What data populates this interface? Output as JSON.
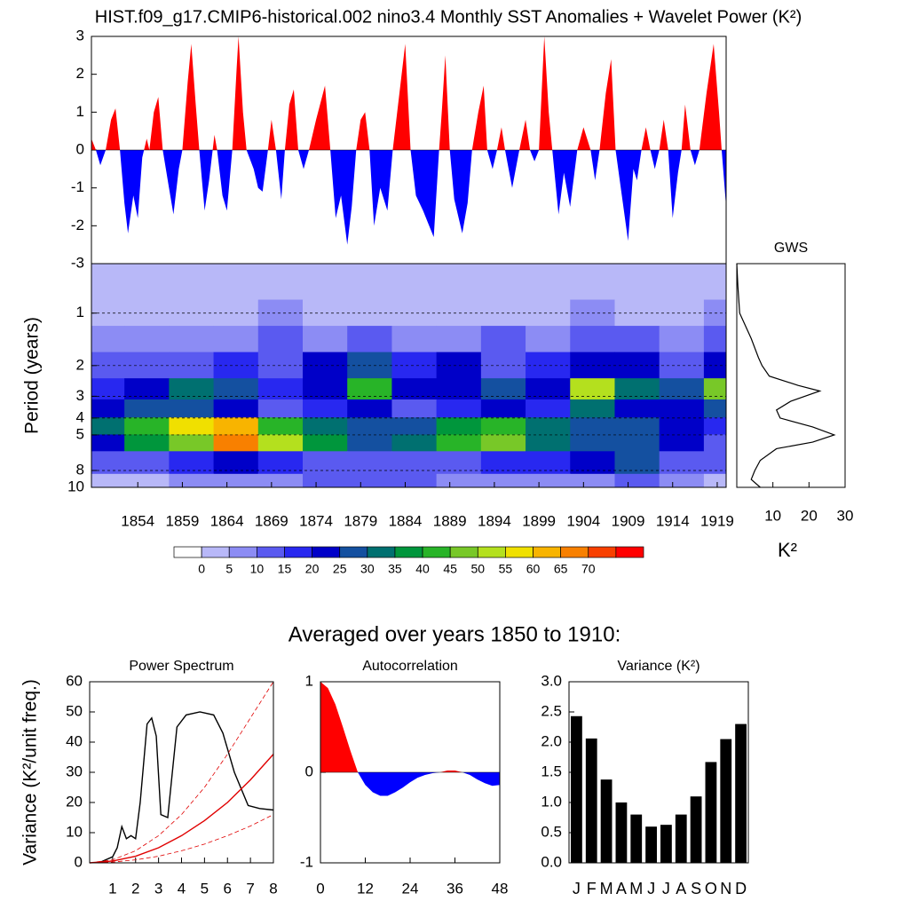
{
  "title": "HIST.f09_g17.CMIP6-historical.002 nino3.4 Monthly SST Anomalies + Wavelet Power (K²)",
  "subtitle": "Averaged over years 1850 to 1910:",
  "chart_data": [
    {
      "type": "area",
      "x": [
        1848.8,
        1849.3,
        1849.8,
        1850.4,
        1851.0,
        1851.5,
        1852.0,
        1852.5,
        1852.9,
        1853.5,
        1854.0,
        1854.5,
        1855.0,
        1855.3,
        1855.8,
        1856.3,
        1856.8,
        1857.5,
        1858.0,
        1858.6,
        1859.0,
        1859.6,
        1860.0,
        1860.5,
        1860.9,
        1861.5,
        1862.0,
        1862.4,
        1862.6,
        1862.9,
        1863.5,
        1864.0,
        1864.6,
        1865.1,
        1865.3,
        1865.8,
        1866.2,
        1867.0,
        1867.5,
        1868.0,
        1868.6,
        1869.0,
        1869.5,
        1870.1,
        1870.5,
        1871.0,
        1871.5,
        1872.0,
        1872.6,
        1873.2,
        1874.0,
        1875.0,
        1875.6,
        1876.2,
        1876.8,
        1877.5,
        1878.0,
        1878.5,
        1879.0,
        1879.5,
        1880.0,
        1880.5,
        1881.2,
        1882.0,
        1882.6,
        1883.4,
        1884.0,
        1884.6,
        1885.2,
        1886.0,
        1887.2,
        1887.8,
        1888.1,
        1888.5,
        1889.0,
        1889.5,
        1890.4,
        1891.0,
        1891.5,
        1892.2,
        1892.8,
        1893.2,
        1893.8,
        1894.3,
        1894.8,
        1895.2,
        1896.0,
        1896.8,
        1897.5,
        1898.0,
        1898.5,
        1899.0,
        1899.6,
        1900.1,
        1900.5,
        1901.2,
        1901.8,
        1902.5,
        1903.3,
        1904.0,
        1904.8,
        1905.3,
        1905.8,
        1906.5,
        1907.1,
        1907.6,
        1908.3,
        1909.0,
        1909.6,
        1910.0,
        1910.5,
        1911.0,
        1911.5,
        1912.0,
        1912.5,
        1913.0,
        1913.5,
        1914.0,
        1914.6,
        1915.0,
        1915.4,
        1916.0,
        1916.5,
        1917.0,
        1917.8,
        1918.6,
        1919.2,
        1919.5,
        1920.0
      ],
      "values": [
        0.3,
        0,
        -0.4,
        0,
        0.8,
        1.1,
        0,
        -1.4,
        -2.2,
        -1.2,
        -1.8,
        -0.2,
        0.3,
        0,
        1.0,
        1.4,
        0,
        -1.0,
        -1.7,
        -0.5,
        0,
        1.8,
        2.8,
        1.2,
        0,
        -1.6,
        -0.8,
        0,
        0.4,
        0,
        -1.2,
        -1.6,
        0,
        2.2,
        3.0,
        1.0,
        0,
        -0.5,
        -1.0,
        -1.1,
        0,
        0.8,
        0,
        -1.3,
        0,
        1.2,
        1.6,
        0,
        -0.5,
        0,
        0.8,
        1.7,
        0,
        -1.8,
        -1.2,
        -2.5,
        -1.5,
        0,
        0.8,
        1.0,
        0,
        -2.0,
        -1.0,
        -1.6,
        0,
        1.6,
        2.8,
        0,
        -1.2,
        -1.6,
        -2.3,
        0,
        1.0,
        2.5,
        0,
        -1.3,
        -2.2,
        -1.4,
        0,
        1.0,
        1.7,
        0,
        -0.5,
        0,
        0.6,
        0,
        -1.0,
        0,
        0.8,
        0,
        -0.3,
        0,
        3.0,
        1.0,
        0,
        -1.7,
        -0.6,
        -1.5,
        0,
        0.6,
        0,
        -0.8,
        0,
        1.5,
        2.4,
        0,
        -1.2,
        -2.4,
        -0.5,
        -0.8,
        0,
        0.6,
        0,
        -0.5,
        0,
        0.8,
        0,
        -1.8,
        -0.6,
        0,
        1.2,
        0,
        -0.4,
        0,
        1.5,
        2.8,
        1.0,
        0,
        -1.5
      ],
      "pos_color": "#ff0000",
      "neg_color": "#0000ff",
      "xlim": [
        1848.8,
        1920
      ],
      "ylim": [
        -3,
        3
      ],
      "yticks": [
        -3,
        -2,
        -1,
        0,
        1,
        2,
        3
      ]
    },
    {
      "type": "heatmap",
      "ylabel": "Period (years)",
      "x": [
        1850,
        1855,
        1860,
        1865,
        1870,
        1875,
        1880,
        1885,
        1890,
        1895,
        1900,
        1905,
        1910,
        1915,
        1920
      ],
      "y": [
        0.5,
        0.7,
        1,
        1.4,
        2,
        2.8,
        3.5,
        4.5,
        5.5,
        7,
        10
      ],
      "values": [
        [
          1,
          1,
          1,
          1,
          1,
          1,
          1,
          1,
          1,
          1,
          1,
          1,
          1,
          1,
          1
        ],
        [
          2,
          2,
          2,
          2,
          2,
          2,
          2,
          2,
          2,
          2,
          2,
          2,
          2,
          2,
          2
        ],
        [
          3,
          3,
          4,
          3,
          6,
          3,
          3,
          4,
          3,
          3,
          3,
          6,
          3,
          3,
          6
        ],
        [
          6,
          6,
          8,
          8,
          10,
          8,
          10,
          6,
          8,
          12,
          8,
          10,
          12,
          8,
          10
        ],
        [
          12,
          10,
          14,
          18,
          14,
          22,
          28,
          18,
          22,
          14,
          16,
          22,
          20,
          14,
          20
        ],
        [
          18,
          22,
          34,
          26,
          18,
          24,
          40,
          22,
          22,
          26,
          22,
          50,
          30,
          28,
          45
        ],
        [
          22,
          26,
          28,
          20,
          14,
          16,
          20,
          14,
          18,
          24,
          16,
          30,
          24,
          20,
          28
        ],
        [
          30,
          40,
          55,
          60,
          44,
          34,
          28,
          26,
          36,
          44,
          34,
          26,
          28,
          22,
          18
        ],
        [
          22,
          36,
          48,
          66,
          50,
          36,
          28,
          30,
          44,
          46,
          32,
          28,
          28,
          20,
          14
        ],
        [
          10,
          14,
          16,
          20,
          18,
          14,
          12,
          12,
          14,
          16,
          18,
          22,
          26,
          14,
          10
        ],
        [
          4,
          4,
          6,
          6,
          8,
          10,
          14,
          12,
          8,
          6,
          6,
          8,
          10,
          6,
          4
        ]
      ],
      "levels": [
        0,
        5,
        10,
        15,
        20,
        25,
        30,
        35,
        40,
        45,
        50,
        55,
        60,
        65,
        70
      ],
      "colors": [
        "#ffffff",
        "#b8b8f8",
        "#8c8cf4",
        "#5a5af0",
        "#2828f0",
        "#0000c8",
        "#1450a0",
        "#007070",
        "#00963c",
        "#28b428",
        "#78c828",
        "#b4e01e",
        "#f0e000",
        "#f8b400",
        "#f88000",
        "#f84000",
        "#ff0000"
      ],
      "xlim": [
        1848.8,
        1920
      ],
      "ylim": [
        0.52,
        10
      ],
      "ylog": true,
      "yreverse": true,
      "grid": true,
      "xticks": [
        1854,
        1859,
        1864,
        1869,
        1874,
        1879,
        1884,
        1889,
        1894,
        1899,
        1904,
        1909,
        1914,
        1919
      ],
      "yticks": [
        1,
        2,
        3,
        4,
        5,
        8,
        10
      ]
    },
    {
      "type": "line",
      "title": "GWS",
      "xlabel": "K²",
      "orientation": "horizontal",
      "y": [
        0.52,
        0.7,
        1,
        1.4,
        1.8,
        2,
        2.3,
        2.6,
        2.8,
        3.2,
        3.6,
        4,
        4.5,
        5,
        5.5,
        6,
        7,
        8,
        9,
        10
      ],
      "values": [
        0,
        0.3,
        0.8,
        4,
        6,
        7,
        9,
        17,
        23,
        15,
        11,
        12,
        21,
        27,
        21,
        11,
        6.5,
        5,
        4,
        6.5
      ],
      "color": "#000000",
      "xlim": [
        0,
        30
      ],
      "xticks": [
        10,
        20,
        30
      ],
      "ylim": [
        0.52,
        10
      ],
      "ylog": true,
      "yreverse": true
    },
    {
      "type": "line",
      "title": "Power Spectrum",
      "ylabel": "Variance (K²/unit freq.)",
      "series": [
        {
          "x": [
            0.4,
            1,
            1.2,
            1.4,
            1.6,
            1.8,
            2,
            2.2,
            2.5,
            2.7,
            2.9,
            3.1,
            3.4,
            3.8,
            4.2,
            4.8,
            5.4,
            5.8,
            6.3,
            6.9,
            7.4,
            8
          ],
          "values": [
            0,
            2,
            5,
            12,
            8,
            9,
            8,
            20,
            46,
            48,
            42,
            16,
            15,
            45,
            49,
            50,
            49,
            43,
            30,
            19,
            18,
            17.5
          ],
          "color": "#000000",
          "dashed": false
        },
        {
          "x": [
            0,
            1,
            2,
            3,
            4,
            5,
            6,
            7,
            8
          ],
          "values": [
            0,
            0.6,
            2.2,
            5,
            9,
            14,
            20,
            27.5,
            36
          ],
          "color": "#e00000",
          "dashed": false
        },
        {
          "x": [
            0,
            1,
            2,
            3,
            4,
            5,
            6,
            7,
            8
          ],
          "values": [
            0,
            1,
            4,
            9,
            16,
            25,
            36,
            48,
            60
          ],
          "color": "#e00000",
          "dashed": true
        },
        {
          "x": [
            0,
            1,
            2,
            3,
            4,
            5,
            6,
            7,
            8
          ],
          "values": [
            0,
            0.25,
            1,
            2.2,
            4,
            6.2,
            9,
            12.2,
            16
          ],
          "color": "#e00000",
          "dashed": true
        }
      ],
      "xlim": [
        0,
        8
      ],
      "xticks": [
        1,
        2,
        3,
        4,
        5,
        6,
        7,
        8
      ],
      "ylim": [
        0,
        60
      ],
      "yticks": [
        0,
        10,
        20,
        30,
        40,
        50,
        60
      ]
    },
    {
      "type": "area",
      "title": "Autocorrelation",
      "x": [
        0,
        2,
        4,
        6,
        8,
        10,
        12,
        14,
        16,
        18,
        20,
        22,
        24,
        26,
        28,
        30,
        32,
        34,
        36,
        38,
        40,
        42,
        44,
        46,
        48
      ],
      "values": [
        1,
        0.93,
        0.75,
        0.5,
        0.24,
        0,
        -0.14,
        -0.22,
        -0.26,
        -0.26,
        -0.22,
        -0.17,
        -0.11,
        -0.06,
        -0.03,
        -0.01,
        0,
        0.02,
        0.02,
        0,
        -0.03,
        -0.08,
        -0.12,
        -0.15,
        -0.14
      ],
      "pos_color": "#ff0000",
      "neg_color": "#0000ff",
      "xlim": [
        0,
        48
      ],
      "xticks": [
        0,
        12,
        24,
        36,
        48
      ],
      "ylim": [
        -1,
        1
      ],
      "yticks": [
        -1,
        0,
        1
      ]
    },
    {
      "type": "bar",
      "title": "Variance (K²)",
      "categories": [
        "J",
        "F",
        "M",
        "A",
        "M",
        "J",
        "J",
        "A",
        "S",
        "O",
        "N",
        "D"
      ],
      "values": [
        2.43,
        2.06,
        1.38,
        1.0,
        0.8,
        0.6,
        0.63,
        0.8,
        1.1,
        1.67,
        2.05,
        2.3
      ],
      "color": "#000000",
      "ylim": [
        0,
        3
      ],
      "yticks": [
        {
          "value": 0,
          "label": "0.0"
        },
        0.5,
        {
          "value": 1,
          "label": "1.0"
        },
        1.5,
        {
          "value": 2,
          "label": "2.0"
        },
        2.5,
        {
          "value": 3,
          "label": "3.0"
        }
      ]
    }
  ]
}
